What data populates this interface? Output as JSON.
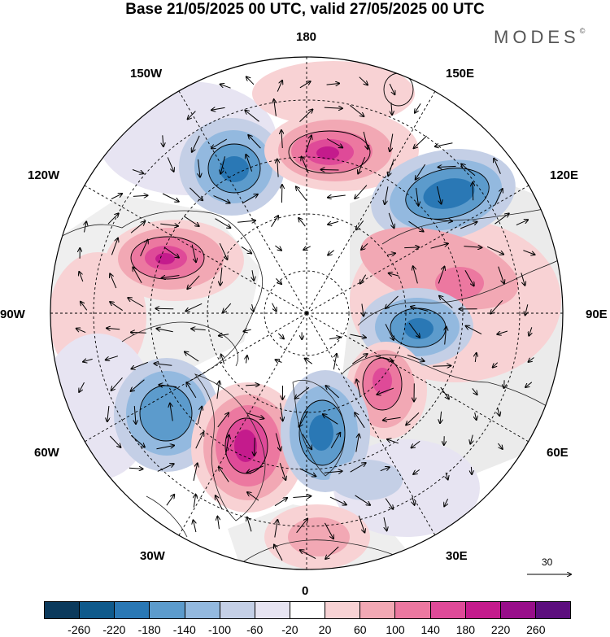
{
  "title": "Base 21/05/2025 00 UTC, valid 27/05/2025 00 UTC",
  "brand": "MODES",
  "brand_mark": "©",
  "longitude_labels": {
    "top": "180",
    "bottom": "0",
    "left": "90W",
    "right": "90E",
    "upper_left_1": "150W",
    "upper_left_2": "120W",
    "lower_left_1": "60W",
    "lower_left_2": "30W",
    "upper_right_1": "150E",
    "upper_right_2": "120E",
    "lower_right_1": "60E",
    "lower_right_2": "30E"
  },
  "vector_scale_label": "30",
  "colorbar": {
    "ticks": [
      "-260",
      "-220",
      "-180",
      "-140",
      "-100",
      "-60",
      "-20",
      "20",
      "60",
      "100",
      "140",
      "180",
      "220",
      "260"
    ],
    "colors": [
      "#0b3a5c",
      "#0f5a8c",
      "#2a78b5",
      "#5c9bcc",
      "#93b9df",
      "#c4cfe6",
      "#e7e4f2",
      "#ffffff",
      "#f8d2d4",
      "#f2a8b4",
      "#ec78a0",
      "#df4a98",
      "#c41b8c",
      "#980e8a",
      "#5c0e7e"
    ]
  },
  "anomaly_centers": [
    {
      "name": "negative-anomaly-bering",
      "color": "#2a78b5"
    },
    {
      "name": "positive-anomaly-pacific",
      "color": "#c41b8c"
    },
    {
      "name": "negative-anomaly-siberia",
      "color": "#2a78b5"
    },
    {
      "name": "positive-anomaly-canada",
      "color": "#c41b8c"
    },
    {
      "name": "positive-anomaly-central-siberia",
      "color": "#df4a98"
    },
    {
      "name": "negative-anomaly-west-siberia",
      "color": "#2a78b5"
    },
    {
      "name": "positive-anomaly-ural",
      "color": "#c41b8c"
    },
    {
      "name": "negative-anomaly-labrador",
      "color": "#5c9bcc"
    },
    {
      "name": "positive-anomaly-greenland",
      "color": "#c41b8c"
    },
    {
      "name": "negative-anomaly-scandinavia",
      "color": "#2a78b5"
    },
    {
      "name": "positive-anomaly-europe",
      "color": "#f2a8b4"
    }
  ]
}
